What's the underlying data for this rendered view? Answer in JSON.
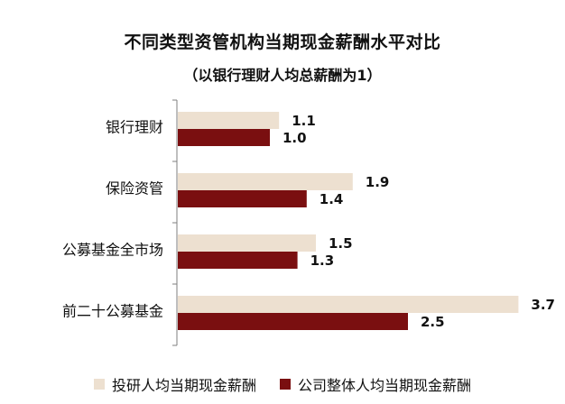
{
  "chart_data": {
    "type": "bar",
    "orientation": "horizontal",
    "title": "不同类型资管机构当期现金薪酬水平对比",
    "subtitle": "（以银行理财人均总薪酬为1）",
    "categories": [
      "银行理财",
      "保险资管",
      "公募基金全市场",
      "前二十公募基金"
    ],
    "series": [
      {
        "name": "投研人均当期现金薪酬",
        "values": [
          1.1,
          1.9,
          1.5,
          3.7
        ],
        "labels": [
          "1.1",
          "1.9",
          "1.5",
          "3.7"
        ],
        "color": "#ede0d0"
      },
      {
        "name": "公司整体人均当期现金薪酬",
        "values": [
          1.0,
          1.4,
          1.3,
          2.5
        ],
        "labels": [
          "1.0",
          "1.4",
          "1.3",
          "2.5"
        ],
        "color": "#7a0f10"
      }
    ],
    "xlim": [
      0,
      4.0
    ],
    "grid": false,
    "legend_position": "bottom"
  }
}
